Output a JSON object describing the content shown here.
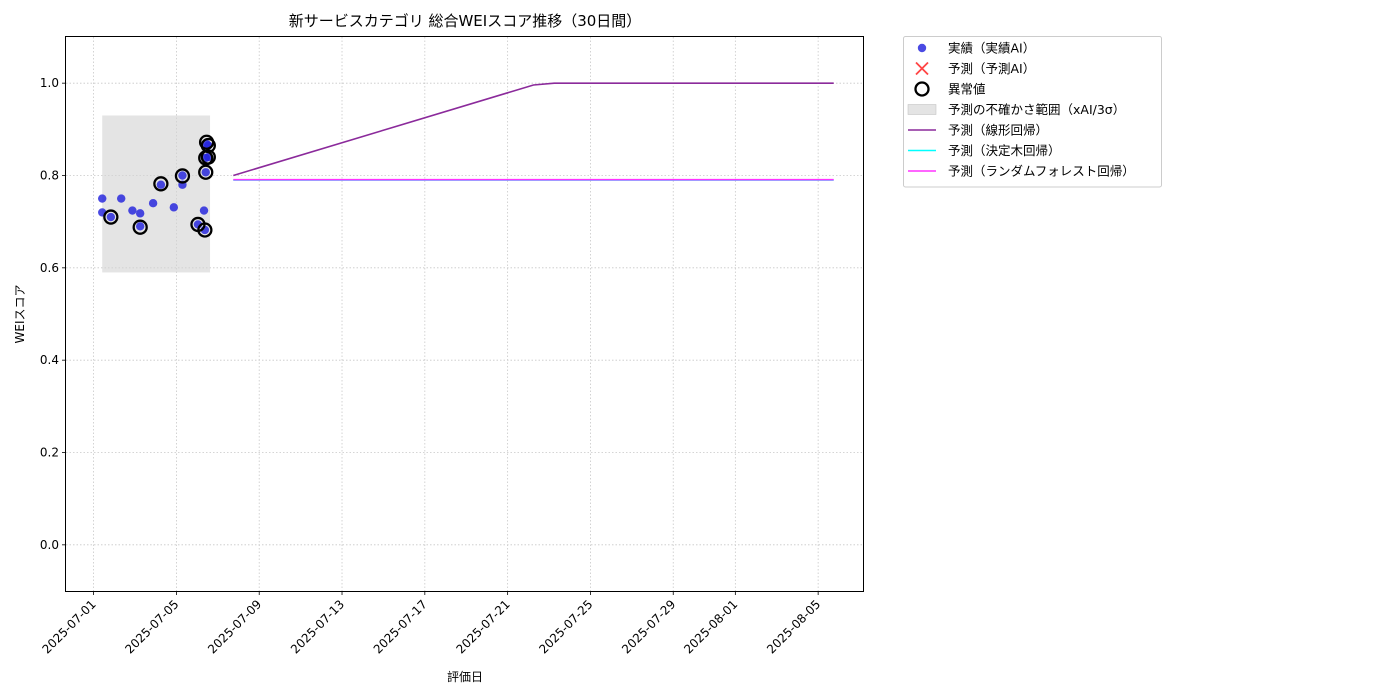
{
  "chart_data": {
    "type": "scatter",
    "title": "新サービスカテゴリ 総合WEIスコア推移（30日間）",
    "xlabel": "評価日",
    "ylabel": "WEIスコア",
    "x_range": [
      "2025-06-29T16:00",
      "2025-08-07T04:00"
    ],
    "ylim": [
      -0.1,
      1.1
    ],
    "y_ticks": [
      0.0,
      0.2,
      0.4,
      0.6,
      0.8,
      1.0
    ],
    "y_tick_labels": [
      "0.0",
      "0.2",
      "0.4",
      "0.6",
      "0.8",
      "1.0"
    ],
    "x_ticks": [
      "2025-07-01",
      "2025-07-05",
      "2025-07-09",
      "2025-07-13",
      "2025-07-17",
      "2025-07-21",
      "2025-07-25",
      "2025-07-29",
      "2025-08-01",
      "2025-08-05"
    ],
    "x_tick_labels": [
      "2025-07-01",
      "2025-07-05",
      "2025-07-09",
      "2025-07-13",
      "2025-07-17",
      "2025-07-21",
      "2025-07-25",
      "2025-07-29",
      "2025-08-01",
      "2025-08-05"
    ],
    "grid": true,
    "legend_position": "outside-top-right",
    "uncertainty_band": {
      "x_start": "2025-07-01T10:00",
      "x_end": "2025-07-06T15:00",
      "y_low": 0.59,
      "y_high": 0.93,
      "color": "#d3d3d3"
    },
    "actual": {
      "name": "実績（実績AI）",
      "color": "#2222dd",
      "points": [
        {
          "x": "2025-07-01T10:00",
          "y": 0.75
        },
        {
          "x": "2025-07-01T10:00",
          "y": 0.72
        },
        {
          "x": "2025-07-01T20:00",
          "y": 0.71
        },
        {
          "x": "2025-07-02T08:00",
          "y": 0.75
        },
        {
          "x": "2025-07-02T21:00",
          "y": 0.724
        },
        {
          "x": "2025-07-03T06:00",
          "y": 0.718
        },
        {
          "x": "2025-07-03T06:00",
          "y": 0.69
        },
        {
          "x": "2025-07-03T21:00",
          "y": 0.74
        },
        {
          "x": "2025-07-04T06:00",
          "y": 0.78
        },
        {
          "x": "2025-07-04T21:00",
          "y": 0.731
        },
        {
          "x": "2025-07-05T07:00",
          "y": 0.8
        },
        {
          "x": "2025-07-05T07:00",
          "y": 0.78
        },
        {
          "x": "2025-07-06T01:00",
          "y": 0.694
        },
        {
          "x": "2025-07-06T08:00",
          "y": 0.724
        },
        {
          "x": "2025-07-06T09:00",
          "y": 0.682
        },
        {
          "x": "2025-07-06T10:00",
          "y": 0.807
        },
        {
          "x": "2025-07-06T10:00",
          "y": 0.838
        },
        {
          "x": "2025-07-06T11:00",
          "y": 0.868
        },
        {
          "x": "2025-07-06T13:00",
          "y": 0.84
        },
        {
          "x": "2025-07-06T13:00",
          "y": 0.865
        }
      ]
    },
    "anomalies": {
      "name": "異常値",
      "color": "#000000",
      "points": [
        {
          "x": "2025-07-01T20:00",
          "y": 0.71
        },
        {
          "x": "2025-07-03T06:00",
          "y": 0.688
        },
        {
          "x": "2025-07-04T06:00",
          "y": 0.782
        },
        {
          "x": "2025-07-05T07:00",
          "y": 0.799
        },
        {
          "x": "2025-07-06T01:00",
          "y": 0.694
        },
        {
          "x": "2025-07-06T09:00",
          "y": 0.682
        },
        {
          "x": "2025-07-06T10:00",
          "y": 0.807
        },
        {
          "x": "2025-07-06T10:00",
          "y": 0.838
        },
        {
          "x": "2025-07-06T11:00",
          "y": 0.872
        },
        {
          "x": "2025-07-06T13:00",
          "y": 0.84
        },
        {
          "x": "2025-07-06T13:00",
          "y": 0.865
        }
      ]
    },
    "predicted_ai": {
      "name": "予測（予測AI）",
      "color": "#ff4444",
      "points": []
    },
    "series": [
      {
        "name": "予測（線形回帰）",
        "color": "#8b2a9b",
        "points": [
          {
            "x": "2025-07-07T18:00",
            "y": 0.8
          },
          {
            "x": "2025-07-22T06:00",
            "y": 0.996
          },
          {
            "x": "2025-07-23T06:00",
            "y": 1.0
          },
          {
            "x": "2025-08-05T18:00",
            "y": 1.0
          }
        ]
      },
      {
        "name": "予測（決定木回帰）",
        "color": "#00ffff",
        "points": [
          {
            "x": "2025-07-07T18:00",
            "y": 0.79
          },
          {
            "x": "2025-08-05T18:00",
            "y": 0.79
          }
        ]
      },
      {
        "name": "予測（ランダムフォレスト回帰）",
        "color": "#ff33ff",
        "points": [
          {
            "x": "2025-07-07T18:00",
            "y": 0.791
          },
          {
            "x": "2025-08-05T18:00",
            "y": 0.791
          }
        ]
      }
    ],
    "legend": [
      {
        "label": "実績（実績AI）",
        "kind": "dot",
        "color": "#2222dd"
      },
      {
        "label": "予測（予測AI）",
        "kind": "cross",
        "color": "#ff4444"
      },
      {
        "label": "異常値",
        "kind": "ring",
        "color": "#000000"
      },
      {
        "label": "予測の不確かさ範囲（xAI/3σ）",
        "kind": "patch",
        "color": "#d3d3d3"
      },
      {
        "label": "予測（線形回帰）",
        "kind": "line",
        "color": "#8b2a9b"
      },
      {
        "label": "予測（決定木回帰）",
        "kind": "line",
        "color": "#00ffff"
      },
      {
        "label": "予測（ランダムフォレスト回帰）",
        "kind": "line",
        "color": "#ff33ff"
      }
    ]
  }
}
